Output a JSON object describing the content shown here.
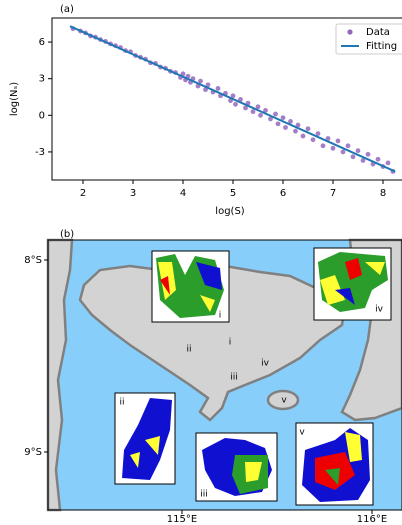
{
  "chart_data": {
    "type": "scatter",
    "panel_label": "(a)",
    "xlabel": "log(S)",
    "ylabel": "log(Nₛ)",
    "xlim": [
      1.38,
      8.38
    ],
    "xticks": [
      2,
      3,
      4,
      5,
      6,
      7,
      8
    ],
    "ylim": [
      -5.3,
      7.97
    ],
    "yticks": [
      6,
      3,
      0,
      -3
    ],
    "legend": "upper right",
    "series": [
      {
        "name": "Data",
        "color": "#9467bd",
        "type": "scatter",
        "x": [
          1.8,
          1.95,
          2.05,
          2.15,
          2.25,
          2.35,
          2.45,
          2.55,
          2.65,
          2.75,
          2.85,
          2.95,
          3.05,
          3.15,
          3.25,
          3.35,
          3.45,
          3.55,
          3.65,
          3.75,
          3.85,
          3.95,
          4.0,
          4.05,
          4.1,
          4.15,
          4.2,
          4.3,
          4.35,
          4.45,
          4.5,
          4.6,
          4.7,
          4.75,
          4.85,
          4.95,
          5.0,
          5.05,
          5.15,
          5.25,
          5.3,
          5.4,
          5.5,
          5.55,
          5.65,
          5.75,
          5.85,
          5.9,
          6.0,
          6.05,
          6.15,
          6.25,
          6.3,
          6.4,
          6.5,
          6.6,
          6.7,
          6.8,
          6.9,
          7.0,
          7.1,
          7.2,
          7.3,
          7.4,
          7.5,
          7.6,
          7.7,
          7.8,
          7.9,
          8.0,
          8.1,
          8.2
        ],
        "values": [
          7.1,
          6.9,
          6.75,
          6.5,
          6.4,
          6.2,
          6.05,
          5.85,
          5.7,
          5.55,
          5.3,
          5.2,
          4.9,
          4.75,
          4.6,
          4.3,
          4.25,
          3.95,
          3.85,
          3.6,
          3.5,
          3.1,
          3.4,
          2.9,
          3.2,
          2.7,
          3.0,
          2.4,
          2.8,
          2.1,
          2.5,
          1.9,
          2.2,
          1.6,
          1.8,
          1.2,
          1.6,
          0.9,
          1.3,
          0.6,
          1.0,
          0.3,
          0.7,
          0.0,
          0.4,
          -0.3,
          0.1,
          -0.7,
          -0.2,
          -1.0,
          -0.5,
          -1.3,
          -0.8,
          -1.7,
          -1.1,
          -2.0,
          -1.5,
          -2.5,
          -1.9,
          -2.7,
          -2.1,
          -3.0,
          -2.5,
          -3.4,
          -2.9,
          -3.7,
          -3.2,
          -4.0,
          -3.6,
          -4.2,
          -3.9,
          -4.6
        ]
      },
      {
        "name": "Fitting",
        "color": "#1f77b4",
        "type": "line",
        "x": [
          1.74,
          8.24
        ],
        "values": [
          7.3,
          -4.6
        ]
      }
    ]
  },
  "map": {
    "panel_label": "(b)",
    "lat_labels": [
      "8°S",
      "9°S"
    ],
    "lon_labels": [
      "115°E",
      "116°E"
    ],
    "region_labels": [
      "i",
      "ii",
      "iii",
      "iv",
      "v"
    ],
    "inset_labels": [
      "i",
      "iv",
      "ii",
      "iii",
      "v"
    ]
  }
}
